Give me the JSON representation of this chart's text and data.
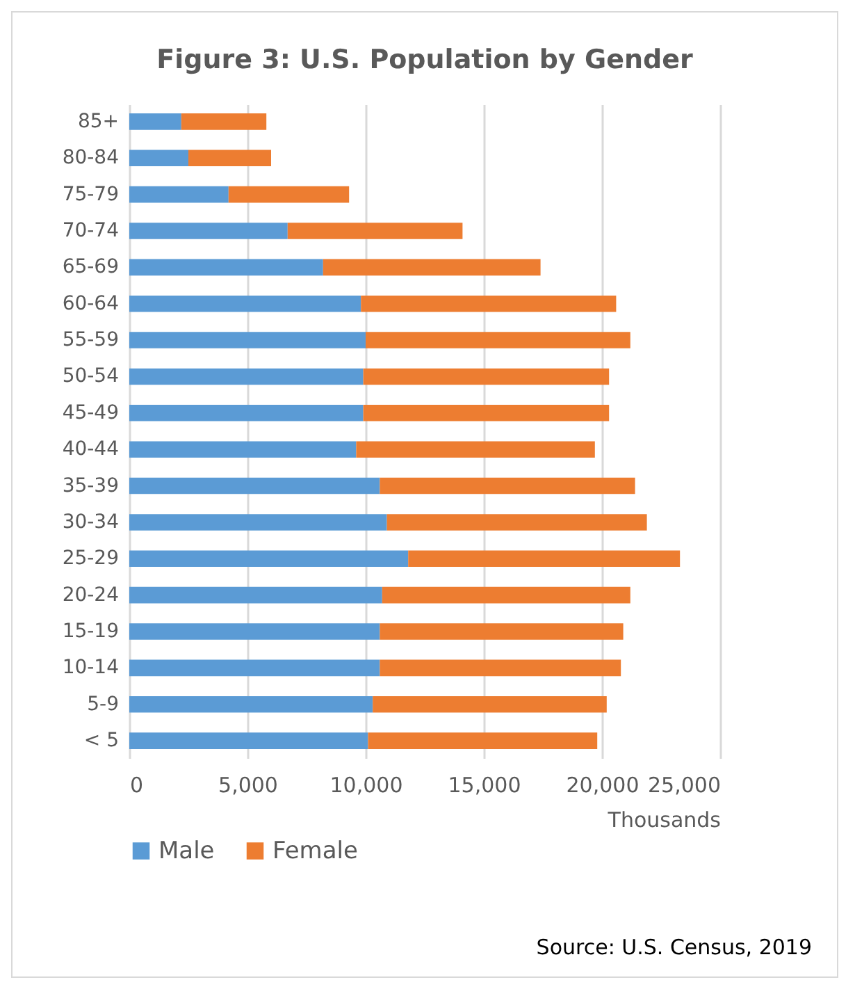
{
  "chart_data": {
    "type": "bar",
    "orientation": "horizontal",
    "stacked": true,
    "title": "Figure 3: U.S. Population by Gender",
    "xlabel": "Thousands",
    "categories": [
      "85+",
      "80-84",
      "75-79",
      "70-74",
      "65-69",
      "60-64",
      "55-59",
      "50-54",
      "45-49",
      "40-44",
      "35-39",
      "30-34",
      "25-29",
      "20-24",
      "15-19",
      "10-14",
      "5-9",
      "< 5"
    ],
    "series": [
      {
        "name": "Male",
        "color": "#5b9bd5",
        "values": [
          2200,
          2500,
          4200,
          6700,
          8200,
          9800,
          10000,
          9900,
          9900,
          9600,
          10600,
          10900,
          11800,
          10700,
          10600,
          10600,
          10300,
          10100
        ]
      },
      {
        "name": "Female",
        "color": "#ed7d31",
        "values": [
          3600,
          3500,
          5100,
          7400,
          9200,
          10800,
          11200,
          10400,
          10400,
          10100,
          10800,
          11000,
          11500,
          10500,
          10300,
          10200,
          9900,
          9700
        ]
      }
    ],
    "xlim": [
      0,
      25000
    ],
    "xticks": [
      {
        "value": 0,
        "label": "0"
      },
      {
        "value": 5000,
        "label": "5,000"
      },
      {
        "value": 10000,
        "label": "10,000"
      },
      {
        "value": 15000,
        "label": "15,000"
      },
      {
        "value": 20000,
        "label": "20,000"
      },
      {
        "value": 25000,
        "label": "25,000"
      }
    ],
    "grid": "x",
    "legend": "bottom",
    "annotations": [
      "Source: U.S. Census, 2019"
    ]
  }
}
